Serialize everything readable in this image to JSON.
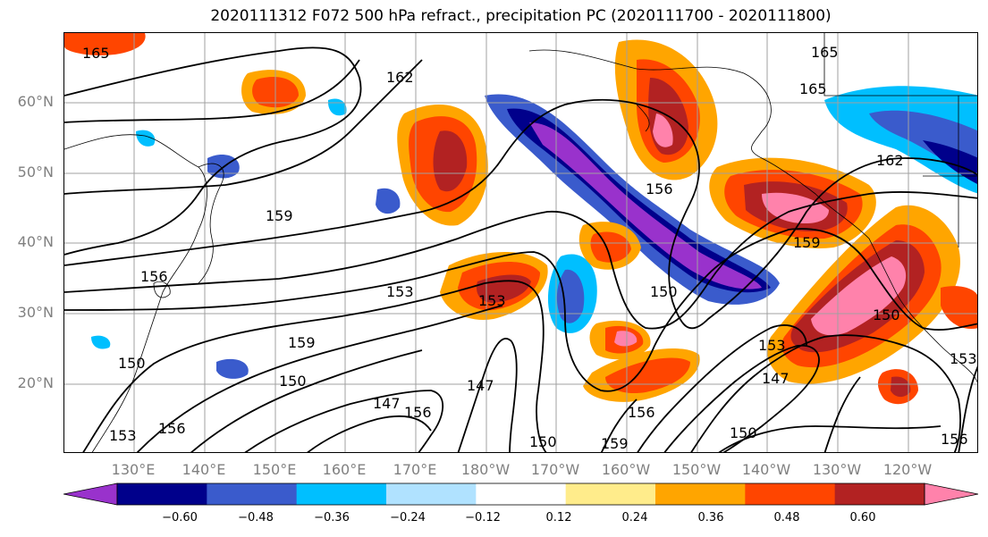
{
  "title": "2020111312 F072 500 hPa refract., precipitation PC (2020111700 - 2020111800)",
  "lat_labels": [
    "60°N",
    "50°N",
    "40°N",
    "30°N",
    "20°N"
  ],
  "lon_labels": [
    "130°E",
    "140°E",
    "150°E",
    "160°E",
    "170°E",
    "180°W",
    "170°W",
    "160°W",
    "150°W",
    "140°W",
    "130°W",
    "120°W"
  ],
  "contour_labels": [
    "165",
    "165",
    "165",
    "162",
    "162",
    "159",
    "159",
    "156",
    "156",
    "156",
    "153",
    "153",
    "153",
    "153",
    "150",
    "150",
    "150",
    "150",
    "150",
    "147",
    "147",
    "147",
    "156",
    "159",
    "156",
    "150",
    "159",
    "153",
    "156"
  ],
  "colorbar": {
    "ticks": [
      "−0.60",
      "−0.48",
      "−0.36",
      "−0.24",
      "−0.12",
      "0.12",
      "0.24",
      "0.36",
      "0.48",
      "0.60"
    ],
    "colors": [
      "#9932cc",
      "#00008b",
      "#3a5bcc",
      "#00bfff",
      "#b0e2ff",
      "#ffffff",
      "#ffec8b",
      "#ffa500",
      "#ff4500",
      "#b22222",
      "#ff82ab"
    ]
  }
}
